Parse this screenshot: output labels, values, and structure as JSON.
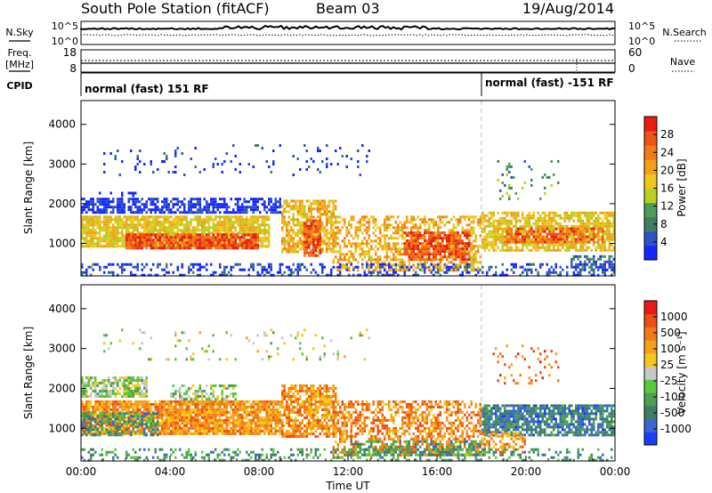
{
  "header": {
    "station": "South Pole Station (fitACF)",
    "beam": "Beam 03",
    "date": "19/Aug/2014"
  },
  "strip_panels": {
    "noise": {
      "left_label": "N.Sky",
      "right_label": "N.Search",
      "left_ticks": [
        "10^5",
        "10^0"
      ],
      "right_ticks": [
        "10^5",
        "10^0"
      ]
    },
    "freq": {
      "left_label_top": "Freq.",
      "left_label_bottom": "[MHz]",
      "right_label": "Nave",
      "left_ticks": [
        "18",
        "8"
      ],
      "right_ticks": [
        "60",
        "0"
      ]
    },
    "cpid": {
      "label": "CPID",
      "modes": [
        {
          "start_hour": 0,
          "text": "normal (fast) 151 RF"
        },
        {
          "start_hour": 18,
          "text": "normal (fast) -151 RF"
        }
      ]
    }
  },
  "chart_data": [
    {
      "type": "heatmap",
      "name": "power",
      "ylabel": "Slant Range [km]",
      "xlim": [
        0,
        24
      ],
      "ylim": [
        180,
        4600
      ],
      "yticks": [
        1000,
        2000,
        3000,
        4000
      ],
      "colorbar": {
        "label": "Power [dB]",
        "ticks": [
          "28",
          "24",
          "20",
          "16",
          "12",
          "8",
          "4"
        ],
        "colors": [
          "#1428ff",
          "#2f52c8",
          "#3f7e62",
          "#4f9c5a",
          "#b8d020",
          "#f0c81c",
          "#f4a018",
          "#f47a16",
          "#ef5414",
          "#e81c12"
        ],
        "range": [
          0,
          32
        ]
      },
      "bands": [
        {
          "t": [
            0.0,
            8.5
          ],
          "r": [
            900,
            1700
          ],
          "level": 0.55,
          "density": 0.85
        },
        {
          "t": [
            0.0,
            9.0
          ],
          "r": [
            1750,
            2150
          ],
          "level": 0.05,
          "density": 0.7
        },
        {
          "t": [
            0.8,
            2.5
          ],
          "r": [
            2200,
            2300
          ],
          "level": 0.05,
          "density": 0.3
        },
        {
          "t": [
            2.0,
            8.0
          ],
          "r": [
            900,
            1250
          ],
          "level": 0.85,
          "density": 0.9
        },
        {
          "t": [
            9.0,
            11.5
          ],
          "r": [
            800,
            2100
          ],
          "level": 0.6,
          "density": 0.7
        },
        {
          "t": [
            10.0,
            10.8
          ],
          "r": [
            700,
            1600
          ],
          "level": 0.85,
          "density": 0.8
        },
        {
          "t": [
            11.3,
            18.0
          ],
          "r": [
            350,
            1700
          ],
          "level": 0.62,
          "density": 0.5
        },
        {
          "t": [
            14.5,
            17.5
          ],
          "r": [
            600,
            1300
          ],
          "level": 0.85,
          "density": 0.75
        },
        {
          "t": [
            18.0,
            24.0
          ],
          "r": [
            800,
            1800
          ],
          "level": 0.55,
          "density": 0.75
        },
        {
          "t": [
            19.0,
            23.5
          ],
          "r": [
            1000,
            1400
          ],
          "level": 0.8,
          "density": 0.7
        },
        {
          "t": [
            22.0,
            24.0
          ],
          "r": [
            350,
            700
          ],
          "level": 0.2,
          "density": 0.6
        },
        {
          "t": [
            18.5,
            21.5
          ],
          "r": [
            2100,
            3100
          ],
          "level": 0.3,
          "density": 0.12
        },
        {
          "t": [
            1.0,
            13.0
          ],
          "r": [
            2700,
            3500
          ],
          "level": 0.1,
          "density": 0.06
        },
        {
          "t": [
            0.0,
            24.0
          ],
          "r": [
            200,
            500
          ],
          "level": 0.1,
          "density": 0.35
        }
      ]
    },
    {
      "type": "heatmap",
      "name": "velocity",
      "ylabel": "Slant Range [km]",
      "xlabel": "Time UT",
      "xlim": [
        0,
        24
      ],
      "ylim": [
        180,
        4600
      ],
      "yticks": [
        1000,
        2000,
        3000,
        4000
      ],
      "xticks": [
        "00:00",
        "04:00",
        "08:00",
        "12:00",
        "16:00",
        "20:00",
        "00:00"
      ],
      "colorbar": {
        "label": "Velocity [m s⁻¹]",
        "ticks": [
          "1000",
          "500",
          "100",
          "25",
          "-25",
          "-100",
          "-500",
          "-1000"
        ],
        "colors": [
          "#1a3cff",
          "#3a66d8",
          "#3e7e62",
          "#4f9e52",
          "#58c840",
          "#c8c8c8",
          "#f4c818",
          "#f4a018",
          "#f47a16",
          "#ef4e14",
          "#e81c12"
        ],
        "range": [
          -1000,
          1000
        ]
      },
      "bands": [
        {
          "t": [
            0.0,
            9.0
          ],
          "r": [
            850,
            1700
          ],
          "level": 0.72,
          "density": 0.9
        },
        {
          "t": [
            0.0,
            3.0
          ],
          "r": [
            1800,
            2300
          ],
          "level": 0.45,
          "density": 0.75
        },
        {
          "t": [
            4.0,
            7.0
          ],
          "r": [
            1750,
            2100
          ],
          "level": 0.45,
          "density": 0.5
        },
        {
          "t": [
            0.0,
            3.5
          ],
          "r": [
            850,
            1400
          ],
          "level": 0.28,
          "density": 0.55
        },
        {
          "t": [
            9.0,
            11.5
          ],
          "r": [
            800,
            2100
          ],
          "level": 0.72,
          "density": 0.7
        },
        {
          "t": [
            11.3,
            18.0
          ],
          "r": [
            350,
            1700
          ],
          "level": 0.75,
          "density": 0.55
        },
        {
          "t": [
            12.0,
            18.0
          ],
          "r": [
            350,
            700
          ],
          "level": 0.3,
          "density": 0.45
        },
        {
          "t": [
            18.0,
            24.0
          ],
          "r": [
            800,
            1600
          ],
          "level": 0.22,
          "density": 0.8
        },
        {
          "t": [
            18.0,
            20.0
          ],
          "r": [
            400,
            900
          ],
          "level": 0.72,
          "density": 0.5
        },
        {
          "t": [
            18.5,
            21.5
          ],
          "r": [
            2100,
            3100
          ],
          "level": 0.8,
          "density": 0.1
        },
        {
          "t": [
            1.0,
            13.0
          ],
          "r": [
            2700,
            3500
          ],
          "level": 0.5,
          "density": 0.06
        },
        {
          "t": [
            0.0,
            24.0
          ],
          "r": [
            200,
            500
          ],
          "level": 0.3,
          "density": 0.3
        }
      ]
    }
  ]
}
